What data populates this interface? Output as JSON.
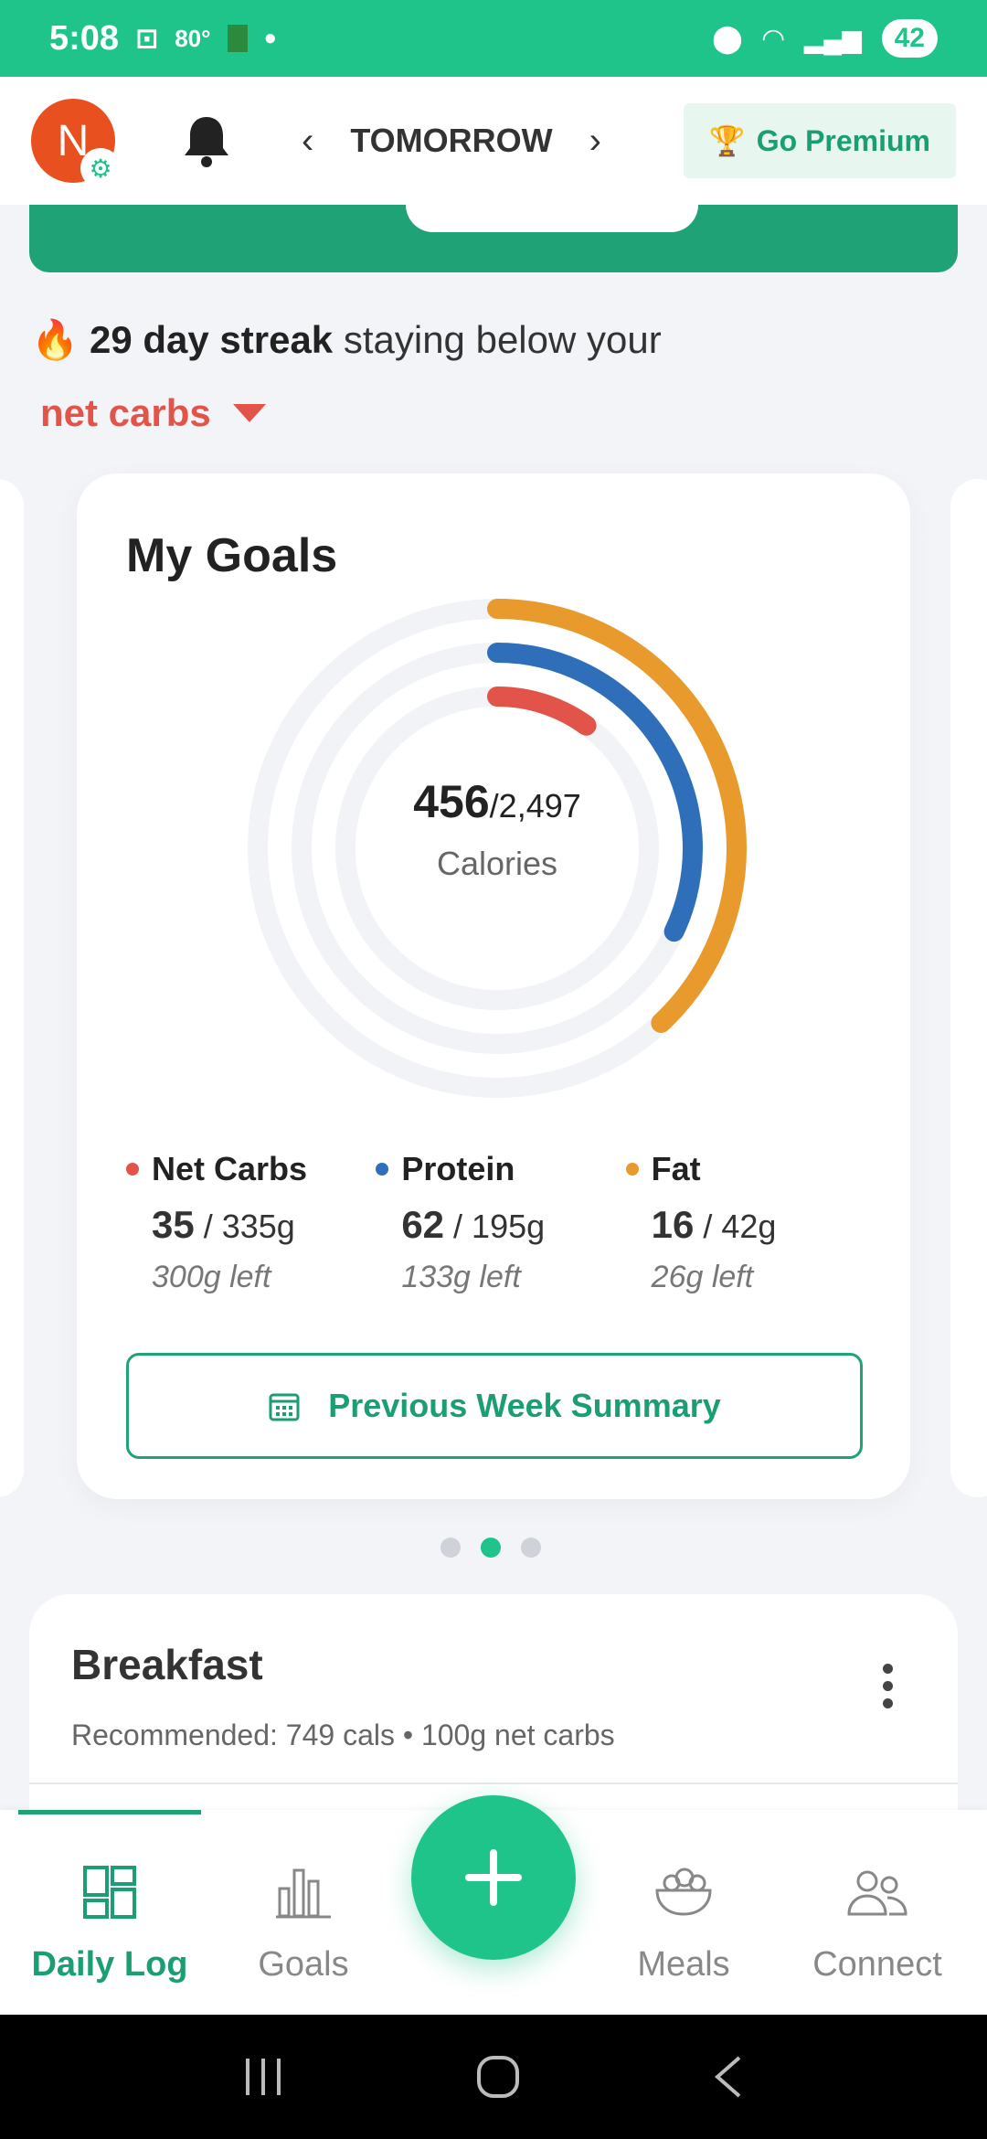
{
  "status": {
    "time": "5:08",
    "temp": "80°",
    "battery": "42"
  },
  "header": {
    "avatar_initial": "N",
    "date_label": "TOMORROW",
    "premium_label": "Go Premium"
  },
  "streak": {
    "emoji": "🔥",
    "bold": "29 day streak",
    "rest": "staying below your",
    "metric": "net carbs"
  },
  "goals": {
    "title": "My Goals",
    "calories_value": "456",
    "calories_goal": "/2,497",
    "calories_label": "Calories",
    "calories_pct": 0.18,
    "macros": [
      {
        "name": "Net Carbs",
        "value": "35",
        "goal": " / 335g",
        "left": "300g left",
        "color": "#e2544a",
        "pct": 0.1
      },
      {
        "name": "Protein",
        "value": "62",
        "goal": " / 195g",
        "left": "133g left",
        "color": "#2f6fba",
        "pct": 0.32
      },
      {
        "name": "Fat",
        "value": "16",
        "goal": " / 42g",
        "left": "26g left",
        "color": "#e89a2c",
        "pct": 0.38
      }
    ],
    "summary_button": "Previous Week Summary"
  },
  "meal": {
    "title": "Breakfast",
    "recommended": "Recommended: 749 cals • 100g net carbs"
  },
  "nav": {
    "daily_log": "Daily Log",
    "goals": "Goals",
    "meals": "Meals",
    "connect": "Connect"
  }
}
